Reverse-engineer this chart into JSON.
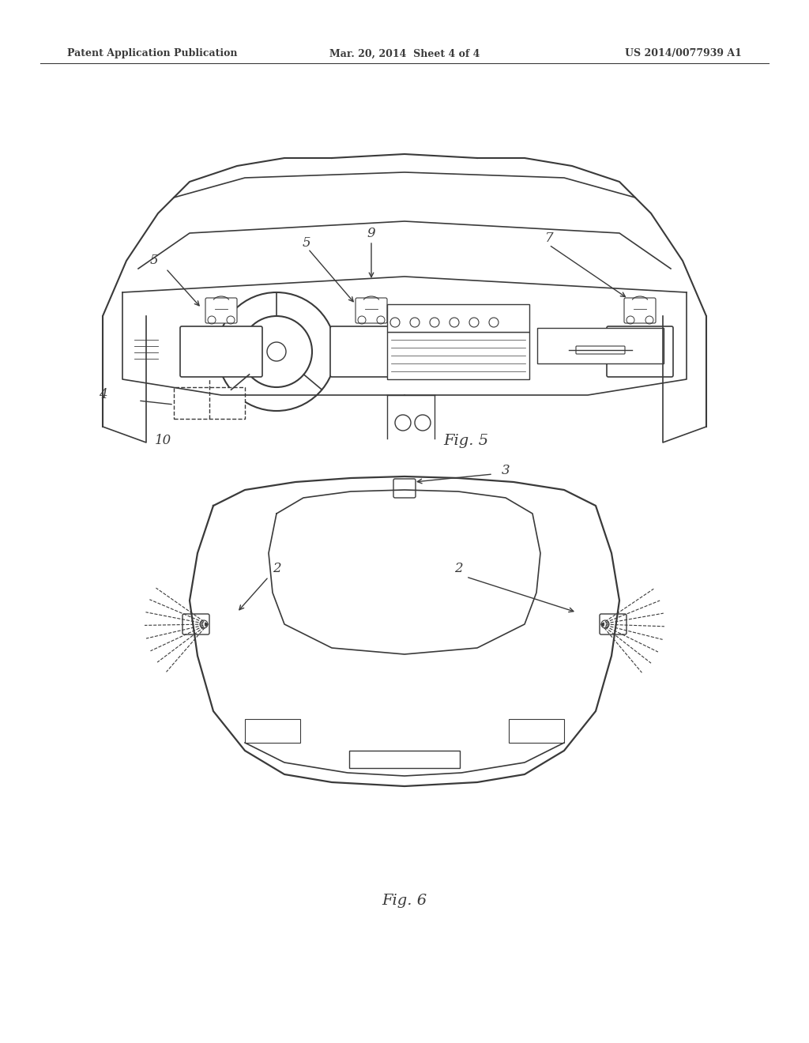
{
  "background_color": "#ffffff",
  "line_color": "#3a3a3a",
  "header_left": "Patent Application Publication",
  "header_center": "Mar. 20, 2014  Sheet 4 of 4",
  "header_right": "US 2014/0077939 A1",
  "fig5_label": "Fig. 5",
  "fig6_label": "Fig. 6",
  "label_4": "4",
  "label_5a": "5",
  "label_5b": "5",
  "label_7": "7",
  "label_9": "9",
  "label_10": "10",
  "label_2a": "2",
  "label_2b": "2",
  "label_3": "3"
}
